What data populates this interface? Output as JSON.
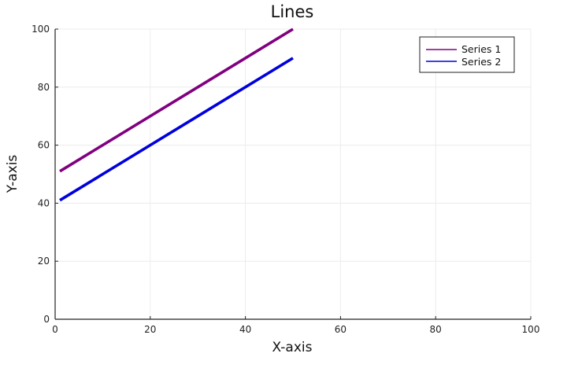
{
  "chart_data": {
    "type": "line",
    "title": "Lines",
    "xlabel": "X-axis",
    "ylabel": "Y-axis",
    "xlim": [
      0,
      100
    ],
    "ylim": [
      0,
      100
    ],
    "xticks": [
      0,
      20,
      40,
      60,
      80,
      100
    ],
    "yticks": [
      0,
      20,
      40,
      60,
      80,
      100
    ],
    "grid": true,
    "legend_position": "top-right",
    "series": [
      {
        "name": "Series 1",
        "color": "#800080",
        "x": [
          1,
          50
        ],
        "y": [
          51,
          100
        ]
      },
      {
        "name": "Series 2",
        "color": "#0000dd",
        "x": [
          1,
          50
        ],
        "y": [
          41,
          90
        ]
      }
    ]
  }
}
